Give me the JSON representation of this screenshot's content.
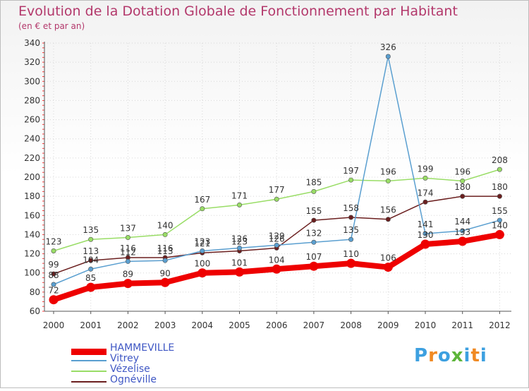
{
  "title": "Evolution de la Dotation Globale de Fonctionnement par Habitant",
  "subtitle": "(en € et par an)",
  "logo": {
    "text": "Proxiti",
    "letters": [
      "P",
      "r",
      "o",
      "x",
      "i",
      "t",
      "i"
    ],
    "colors": [
      "#3da0e0",
      "#f08a24",
      "#3da0e0",
      "#5db53a",
      "#3da0e0",
      "#f08a24",
      "#3da0e0"
    ]
  },
  "chart_data": {
    "type": "line",
    "title": "Evolution de la Dotation Globale de Fonctionnement par Habitant",
    "subtitle": "(en € et par an)",
    "xlabel": "",
    "ylabel": "",
    "ylim": [
      60,
      340
    ],
    "yticks": [
      60,
      80,
      100,
      120,
      140,
      160,
      180,
      200,
      220,
      240,
      260,
      280,
      300,
      320,
      340
    ],
    "categories": [
      "2000",
      "2001",
      "2002",
      "2003",
      "2004",
      "2005",
      "2006",
      "2007",
      "2008",
      "2009",
      "2010",
      "2011",
      "2012"
    ],
    "series": [
      {
        "name": "HAMMEVILLE",
        "color": "#ee0000",
        "values": [
          72,
          85,
          89,
          90,
          100,
          101,
          104,
          107,
          110,
          106,
          130,
          133,
          140
        ]
      },
      {
        "name": "Vitrey",
        "color": "#5a9fd0",
        "values": [
          88,
          104,
          112,
          113,
          123,
          126,
          129,
          132,
          135,
          326,
          141,
          144,
          155
        ]
      },
      {
        "name": "Vézelise",
        "color": "#99dd66",
        "values": [
          123,
          135,
          137,
          140,
          167,
          171,
          177,
          185,
          197,
          196,
          199,
          196,
          208
        ]
      },
      {
        "name": "Ognéville",
        "color": "#6b1f1f",
        "values": [
          99,
          113,
          116,
          116,
          121,
          123,
          126,
          155,
          158,
          156,
          174,
          180,
          180
        ]
      }
    ]
  }
}
